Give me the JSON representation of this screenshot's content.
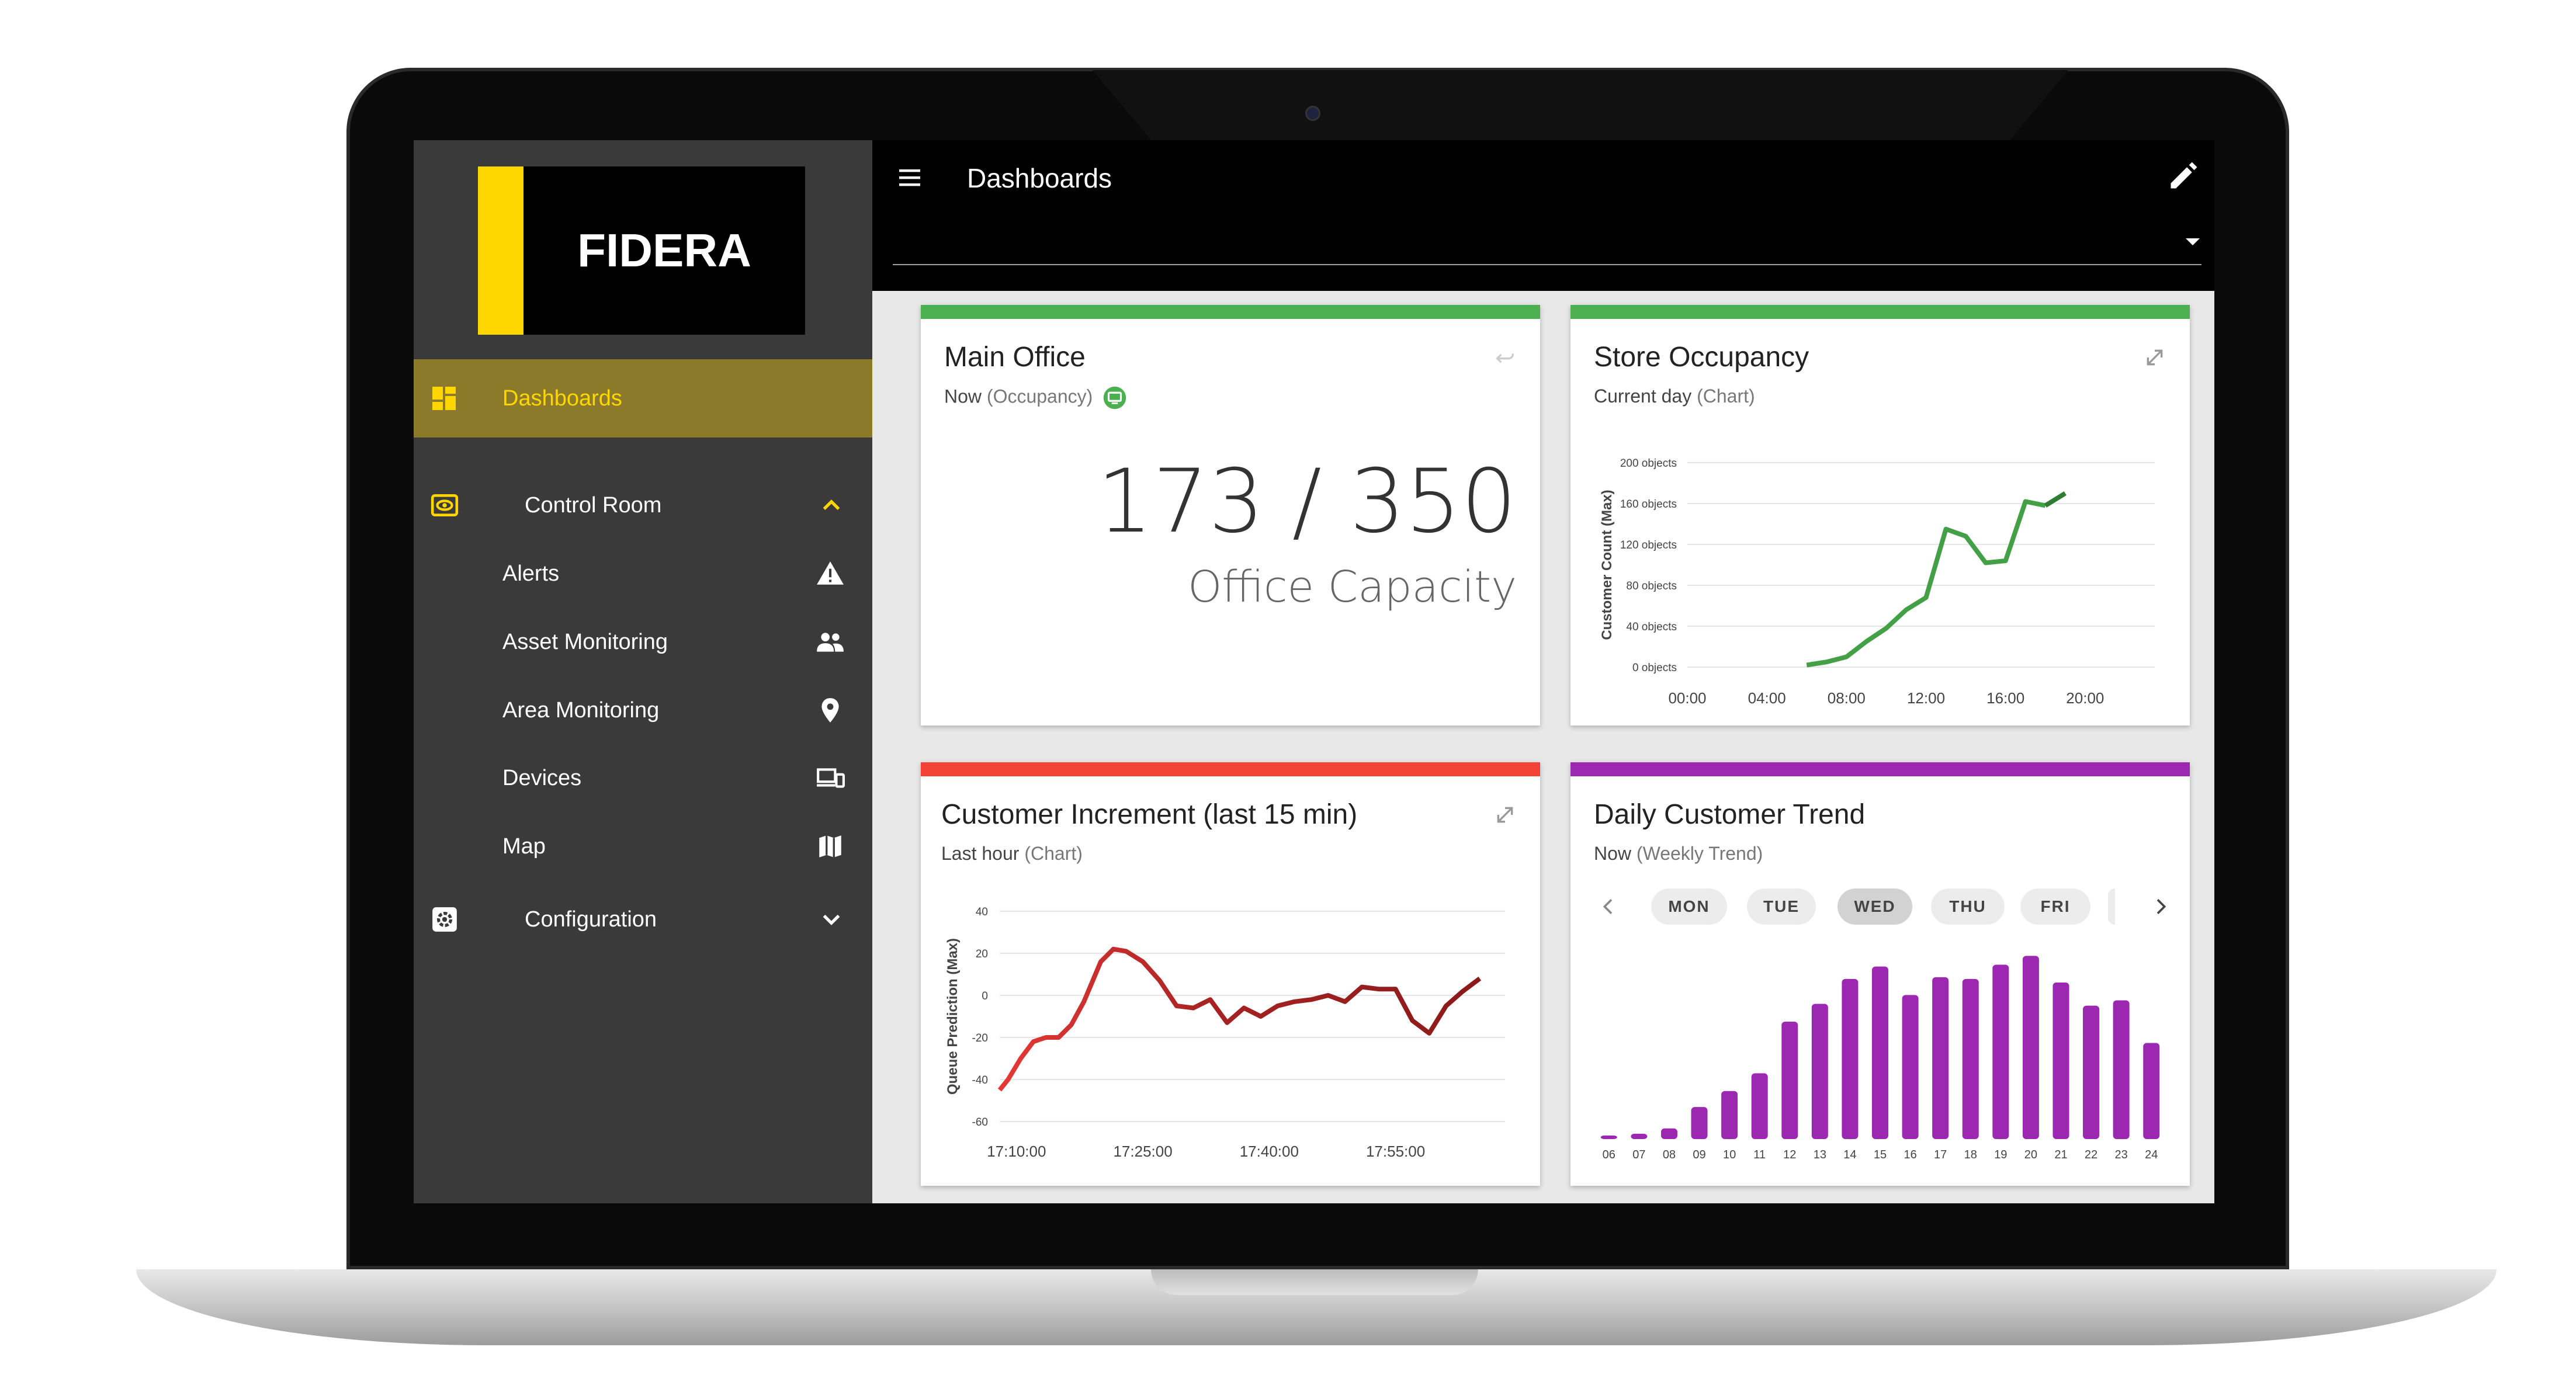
{
  "app": {
    "logo_text": "FIDERA",
    "accent": "#ffd600"
  },
  "header": {
    "title": "Dashboards"
  },
  "sidebar": {
    "dashboards": "Dashboards",
    "control_room": "Control Room",
    "alerts": "Alerts",
    "asset_monitoring": "Asset Monitoring",
    "area_monitoring": "Area Monitoring",
    "devices": "Devices",
    "map": "Map",
    "configuration": "Configuration"
  },
  "cards": {
    "main_office": {
      "title": "Main Office",
      "sub_strong": "Now",
      "sub_rest": " (Occupancy)",
      "value": "173 / 350",
      "caption": "Office Capacity",
      "color": "#4caf50"
    },
    "store_occupancy": {
      "title": "Store Occupancy",
      "sub_strong": "Current day",
      "sub_rest": " (Chart)",
      "color": "#4caf50"
    },
    "customer_increment": {
      "title": "Customer Increment (last 15 min)",
      "sub_strong": "Last hour",
      "sub_rest": " (Chart)",
      "color": "#f44336"
    },
    "daily_trend": {
      "title": "Daily Customer Trend",
      "sub_strong": "Now",
      "sub_rest": " (Weekly Trend)",
      "color": "#9c27b0",
      "days": [
        "MON",
        "TUE",
        "WED",
        "THU",
        "FRI"
      ],
      "selected_day": "WED"
    }
  },
  "chart_data": [
    {
      "type": "line",
      "ylabel": "Customer Count (Max)",
      "y_ticks": [
        "0 objects",
        "40 objects",
        "80 objects",
        "120 objects",
        "160 objects",
        "200 objects"
      ],
      "x_ticks": [
        "00:00",
        "04:00",
        "08:00",
        "12:00",
        "16:00",
        "20:00"
      ],
      "ylim": [
        0,
        200
      ],
      "xlim": [
        0,
        23.5
      ],
      "x": [
        6,
        7,
        8,
        9,
        10,
        11,
        12,
        13,
        14,
        15,
        16,
        17,
        18
      ],
      "values": [
        2,
        5,
        10,
        25,
        38,
        56,
        68,
        135,
        128,
        102,
        104,
        162,
        158
      ],
      "x_tail": [
        18,
        19
      ],
      "tail_values": [
        158,
        170
      ],
      "color": "#43a047",
      "tail_color": "#2e7d32"
    },
    {
      "type": "line",
      "ylabel": "Queue Prediction (Max)",
      "y_ticks": [
        "40",
        "20",
        "0",
        "-20",
        "-40",
        "-60"
      ],
      "x_ticks": [
        "17:10:00",
        "17:25:00",
        "17:40:00",
        "17:55:00"
      ],
      "ylim": [
        -60,
        40
      ],
      "xlim": [
        0,
        60
      ],
      "x": [
        0,
        1,
        2.5,
        4,
        5.5,
        7,
        8.5,
        10,
        12,
        13.5,
        15,
        17,
        19,
        21,
        23,
        25,
        27,
        29,
        31,
        33,
        35,
        37,
        39,
        41,
        43,
        45,
        47,
        49,
        51,
        53,
        55,
        57
      ],
      "values": [
        -45,
        -40,
        -30,
        -22,
        -20,
        -20,
        -14,
        -3,
        16,
        22,
        21,
        16,
        7,
        -5,
        -6,
        -2,
        -13,
        -6,
        -10,
        -5,
        -3,
        -2,
        0,
        -3,
        4,
        3,
        3,
        -12,
        -18,
        -5,
        2,
        8
      ],
      "color": "#e53935",
      "color_end": "#8b1a1a"
    },
    {
      "type": "bar",
      "categories": [
        "06",
        "07",
        "08",
        "09",
        "10",
        "11",
        "12",
        "13",
        "14",
        "15",
        "16",
        "17",
        "18",
        "19",
        "20",
        "21",
        "22",
        "23",
        "24"
      ],
      "values": [
        2,
        3,
        6,
        18,
        27,
        37,
        66,
        76,
        90,
        97,
        81,
        91,
        90,
        98,
        103,
        88,
        75,
        78,
        54
      ],
      "ylim": [
        0,
        110
      ],
      "color": "#9c27b0"
    }
  ]
}
